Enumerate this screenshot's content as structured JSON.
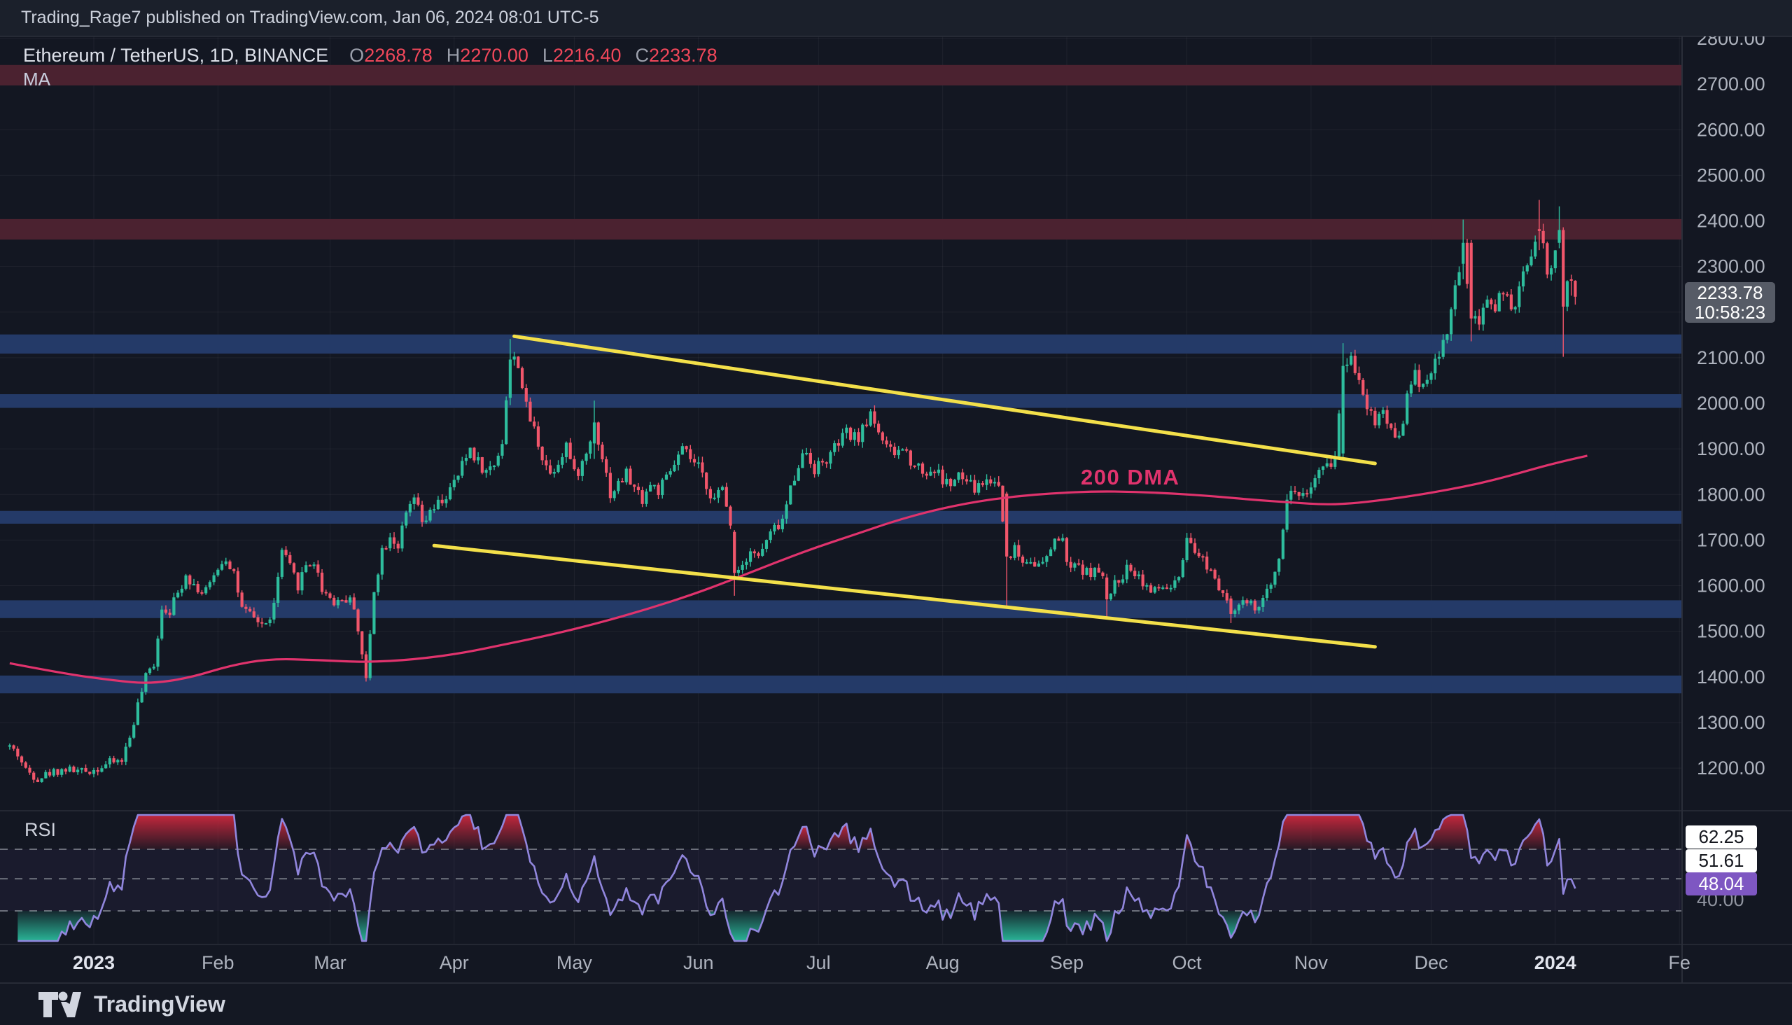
{
  "topbar": {
    "published_text": "Trading_Rage7 published on TradingView.com, Jan 06, 2024 08:01 UTC-5"
  },
  "symbol_header": {
    "title": "Ethereum / TetherUS, 1D, BINANCE",
    "ohlc": {
      "o_label": "O",
      "o": "2268.78",
      "h_label": "H",
      "h": "2270.00",
      "l_label": "L",
      "l": "2216.40",
      "c_label": "C",
      "c": "2233.78"
    },
    "ma_label": "MA"
  },
  "annotations": {
    "dma_label": "200 DMA"
  },
  "price_badge": {
    "price": "2233.78",
    "countdown": "10:58:23"
  },
  "rsi_panel": {
    "label": "RSI",
    "upper_badge": "62.25",
    "middle_badge": "51.61",
    "current_badge": "48.04",
    "lower_label": "40.00"
  },
  "footer": {
    "brand": "TradingView"
  },
  "chart_data": {
    "type": "candlestick",
    "symbol": "ETHUSDT",
    "timeframe": "1D",
    "ylim": [
      1100,
      2820
    ],
    "price_ticks": [
      1200,
      1300,
      1400,
      1500,
      1600,
      1700,
      1800,
      1900,
      2000,
      2100,
      2300,
      2400,
      2500,
      2600,
      2700,
      2800
    ],
    "x_axis": [
      {
        "text": "2023",
        "day": 0,
        "bold": true
      },
      {
        "text": "Feb",
        "day": 31
      },
      {
        "text": "Mar",
        "day": 59
      },
      {
        "text": "Apr",
        "day": 90
      },
      {
        "text": "May",
        "day": 120
      },
      {
        "text": "Jun",
        "day": 151
      },
      {
        "text": "Jul",
        "day": 181
      },
      {
        "text": "Aug",
        "day": 212
      },
      {
        "text": "Sep",
        "day": 243
      },
      {
        "text": "Oct",
        "day": 273
      },
      {
        "text": "Nov",
        "day": 304
      },
      {
        "text": "Dec",
        "day": 334
      },
      {
        "text": "2024",
        "day": 365,
        "bold": true
      },
      {
        "text": "Fe",
        "day": 396
      }
    ],
    "zones": {
      "resistance": [
        [
          2697,
          2742
        ],
        [
          2359,
          2404
        ]
      ],
      "support": [
        [
          2109,
          2151
        ],
        [
          1990,
          2020
        ],
        [
          1736,
          1764
        ],
        [
          1529,
          1568
        ],
        [
          1364,
          1403
        ]
      ]
    },
    "trendlines": [
      {
        "d1": 105,
        "p1": 2147,
        "d2": 320,
        "p2": 1868
      },
      {
        "d1": 85,
        "p1": 1688,
        "d2": 320,
        "p2": 1466
      }
    ],
    "ma_points": [
      [
        -21,
        1430
      ],
      [
        -8,
        1408
      ],
      [
        5,
        1392
      ],
      [
        14,
        1385
      ],
      [
        24,
        1398
      ],
      [
        34,
        1425
      ],
      [
        44,
        1440
      ],
      [
        56,
        1437
      ],
      [
        68,
        1432
      ],
      [
        80,
        1438
      ],
      [
        92,
        1452
      ],
      [
        103,
        1472
      ],
      [
        114,
        1492
      ],
      [
        126,
        1518
      ],
      [
        138,
        1548
      ],
      [
        150,
        1582
      ],
      [
        160,
        1615
      ],
      [
        170,
        1650
      ],
      [
        180,
        1683
      ],
      [
        190,
        1712
      ],
      [
        200,
        1742
      ],
      [
        210,
        1766
      ],
      [
        220,
        1784
      ],
      [
        230,
        1796
      ],
      [
        240,
        1803
      ],
      [
        250,
        1807
      ],
      [
        260,
        1806
      ],
      [
        270,
        1802
      ],
      [
        280,
        1796
      ],
      [
        290,
        1788
      ],
      [
        300,
        1782
      ],
      [
        307,
        1778
      ],
      [
        314,
        1780
      ],
      [
        322,
        1788
      ],
      [
        330,
        1798
      ],
      [
        338,
        1810
      ],
      [
        346,
        1824
      ],
      [
        354,
        1842
      ],
      [
        362,
        1862
      ],
      [
        368,
        1875
      ],
      [
        373,
        1885
      ]
    ],
    "day_range": [
      -21,
      370
    ],
    "seed": 42,
    "close_anchors": [
      [
        -21,
        1248
      ],
      [
        -19,
        1230
      ],
      [
        -17,
        1196
      ],
      [
        -14,
        1178
      ],
      [
        -11,
        1190
      ],
      [
        -7,
        1198
      ],
      [
        -3,
        1192
      ],
      [
        0,
        1196
      ],
      [
        4,
        1212
      ],
      [
        7,
        1218
      ],
      [
        9,
        1268
      ],
      [
        11,
        1338
      ],
      [
        13,
        1398
      ],
      [
        15,
        1430
      ],
      [
        17,
        1552
      ],
      [
        19,
        1548
      ],
      [
        21,
        1582
      ],
      [
        23,
        1628
      ],
      [
        25,
        1602
      ],
      [
        27,
        1586
      ],
      [
        29,
        1598
      ],
      [
        31,
        1642
      ],
      [
        33,
        1662
      ],
      [
        35,
        1630
      ],
      [
        37,
        1546
      ],
      [
        40,
        1528
      ],
      [
        43,
        1512
      ],
      [
        45,
        1556
      ],
      [
        47,
        1676
      ],
      [
        49,
        1638
      ],
      [
        51,
        1602
      ],
      [
        53,
        1646
      ],
      [
        55,
        1652
      ],
      [
        57,
        1594
      ],
      [
        60,
        1566
      ],
      [
        63,
        1572
      ],
      [
        65,
        1558
      ],
      [
        67,
        1448
      ],
      [
        68,
        1392
      ],
      [
        70,
        1594
      ],
      [
        72,
        1678
      ],
      [
        74,
        1712
      ],
      [
        76,
        1688
      ],
      [
        78,
        1752
      ],
      [
        80,
        1792
      ],
      [
        82,
        1736
      ],
      [
        84,
        1756
      ],
      [
        86,
        1778
      ],
      [
        88,
        1796
      ],
      [
        90,
        1822
      ],
      [
        92,
        1862
      ],
      [
        94,
        1902
      ],
      [
        96,
        1872
      ],
      [
        98,
        1848
      ],
      [
        100,
        1868
      ],
      [
        102,
        1918
      ],
      [
        104,
        2096
      ],
      [
        106,
        2090
      ],
      [
        108,
        1988
      ],
      [
        110,
        1942
      ],
      [
        112,
        1886
      ],
      [
        114,
        1846
      ],
      [
        116,
        1874
      ],
      [
        118,
        1912
      ],
      [
        120,
        1842
      ],
      [
        122,
        1866
      ],
      [
        124,
        1916
      ],
      [
        125,
        1958
      ],
      [
        127,
        1886
      ],
      [
        129,
        1802
      ],
      [
        131,
        1822
      ],
      [
        133,
        1846
      ],
      [
        135,
        1812
      ],
      [
        137,
        1792
      ],
      [
        139,
        1822
      ],
      [
        141,
        1808
      ],
      [
        143,
        1832
      ],
      [
        145,
        1866
      ],
      [
        147,
        1896
      ],
      [
        149,
        1878
      ],
      [
        151,
        1856
      ],
      [
        153,
        1822
      ],
      [
        155,
        1788
      ],
      [
        157,
        1812
      ],
      [
        159,
        1742
      ],
      [
        160,
        1628
      ],
      [
        162,
        1648
      ],
      [
        164,
        1682
      ],
      [
        166,
        1662
      ],
      [
        168,
        1698
      ],
      [
        170,
        1724
      ],
      [
        172,
        1742
      ],
      [
        174,
        1812
      ],
      [
        176,
        1872
      ],
      [
        178,
        1894
      ],
      [
        180,
        1858
      ],
      [
        182,
        1868
      ],
      [
        184,
        1886
      ],
      [
        186,
        1912
      ],
      [
        188,
        1934
      ],
      [
        190,
        1922
      ],
      [
        192,
        1938
      ],
      [
        194,
        1982
      ],
      [
        196,
        1942
      ],
      [
        198,
        1898
      ],
      [
        200,
        1888
      ],
      [
        202,
        1902
      ],
      [
        204,
        1878
      ],
      [
        206,
        1862
      ],
      [
        208,
        1846
      ],
      [
        210,
        1856
      ],
      [
        212,
        1832
      ],
      [
        214,
        1822
      ],
      [
        216,
        1838
      ],
      [
        218,
        1828
      ],
      [
        220,
        1812
      ],
      [
        222,
        1826
      ],
      [
        224,
        1832
      ],
      [
        226,
        1822
      ],
      [
        228,
        1664
      ],
      [
        230,
        1682
      ],
      [
        232,
        1652
      ],
      [
        234,
        1662
      ],
      [
        236,
        1642
      ],
      [
        238,
        1656
      ],
      [
        240,
        1706
      ],
      [
        242,
        1692
      ],
      [
        244,
        1632
      ],
      [
        246,
        1646
      ],
      [
        248,
        1628
      ],
      [
        250,
        1636
      ],
      [
        252,
        1612
      ],
      [
        253,
        1570
      ],
      [
        255,
        1602
      ],
      [
        257,
        1626
      ],
      [
        259,
        1642
      ],
      [
        261,
        1622
      ],
      [
        263,
        1598
      ],
      [
        265,
        1586
      ],
      [
        267,
        1598
      ],
      [
        269,
        1592
      ],
      [
        271,
        1612
      ],
      [
        273,
        1692
      ],
      [
        275,
        1672
      ],
      [
        277,
        1658
      ],
      [
        279,
        1636
      ],
      [
        281,
        1602
      ],
      [
        283,
        1578
      ],
      [
        284,
        1538
      ],
      [
        286,
        1556
      ],
      [
        288,
        1562
      ],
      [
        290,
        1548
      ],
      [
        292,
        1566
      ],
      [
        294,
        1602
      ],
      [
        296,
        1672
      ],
      [
        298,
        1792
      ],
      [
        300,
        1812
      ],
      [
        302,
        1796
      ],
      [
        304,
        1822
      ],
      [
        306,
        1842
      ],
      [
        308,
        1862
      ],
      [
        310,
        1882
      ],
      [
        312,
        2082
      ],
      [
        314,
        2102
      ],
      [
        316,
        2058
      ],
      [
        318,
        1996
      ],
      [
        320,
        1962
      ],
      [
        322,
        1986
      ],
      [
        324,
        1942
      ],
      [
        326,
        1928
      ],
      [
        328,
        2012
      ],
      [
        330,
        2062
      ],
      [
        332,
        2042
      ],
      [
        334,
        2078
      ],
      [
        336,
        2102
      ],
      [
        338,
        2162
      ],
      [
        340,
        2242
      ],
      [
        342,
        2352
      ],
      [
        344,
        2186
      ],
      [
        346,
        2162
      ],
      [
        348,
        2232
      ],
      [
        350,
        2212
      ],
      [
        352,
        2252
      ],
      [
        354,
        2192
      ],
      [
        356,
        2242
      ],
      [
        358,
        2312
      ],
      [
        360,
        2352
      ],
      [
        361,
        2378
      ],
      [
        363,
        2294
      ],
      [
        364,
        2282
      ],
      [
        365,
        2352
      ],
      [
        366,
        2380
      ],
      [
        367,
        2212
      ],
      [
        368,
        2272
      ],
      [
        369,
        2268.78
      ],
      [
        370,
        2233.78
      ]
    ],
    "overrides": {
      "104": [
        2012,
        2141,
        1996,
        2096
      ],
      "125": [
        1912,
        2006,
        1878,
        1958
      ],
      "160": [
        1718,
        1722,
        1578,
        1628
      ],
      "228": [
        1802,
        1806,
        1551,
        1664
      ],
      "253": [
        1618,
        1626,
        1528,
        1570
      ],
      "284": [
        1572,
        1578,
        1518,
        1538
      ],
      "312": [
        1890,
        2132,
        1882,
        2082
      ],
      "342": [
        2306,
        2403,
        2272,
        2352
      ],
      "344": [
        2352,
        2358,
        2136,
        2186
      ],
      "361": [
        2382,
        2446,
        2336,
        2378
      ],
      "366": [
        2352,
        2432,
        2340,
        2380
      ],
      "367": [
        2380,
        2386,
        2102,
        2212
      ],
      "369": [
        2272,
        2282,
        2236,
        2268.78
      ],
      "370": [
        2268.78,
        2270,
        2216.4,
        2233.78
      ]
    },
    "last_candle": {
      "open": 2268.78,
      "high": 2270.0,
      "low": 2216.4,
      "close": 2233.78
    },
    "rsi": {
      "period": 14,
      "guides": [
        62.25,
        51.61,
        40
      ],
      "current": 48.04
    },
    "colors": {
      "bg": "#131722",
      "grid": "rgba(255,255,255,0.05)",
      "up": "#2ebd9d",
      "down": "#f1566b",
      "ma_line": "#e0336d",
      "trendline": "#f3e04a",
      "zone_resistance": "#4b2230",
      "zone_support": "#243a68",
      "rsi_line": "#9186dd",
      "rsi_badge": "#7e57c2",
      "axis_text": "#aeb3be",
      "divider": "#2a2e39"
    }
  }
}
